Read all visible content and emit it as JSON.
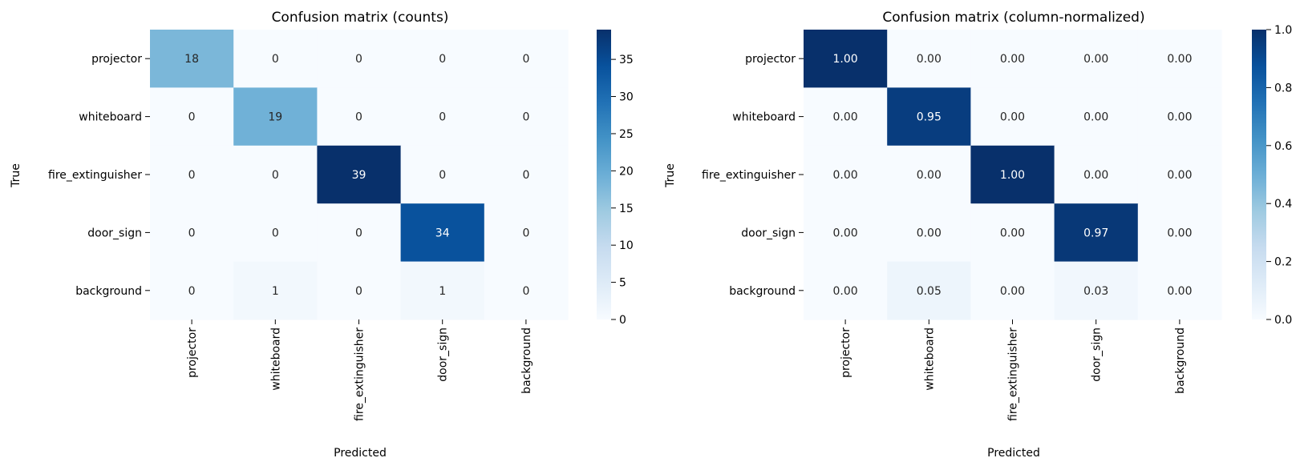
{
  "chart_data": [
    {
      "type": "heatmap",
      "title": "Confusion matrix (counts)",
      "xlabel": "Predicted",
      "ylabel": "True",
      "x_categories": [
        "projector",
        "whiteboard",
        "fire_extinguisher",
        "door_sign",
        "background"
      ],
      "y_categories": [
        "projector",
        "whiteboard",
        "fire_extinguisher",
        "door_sign",
        "background"
      ],
      "values": [
        [
          18,
          0,
          0,
          0,
          0
        ],
        [
          0,
          19,
          0,
          0,
          0
        ],
        [
          0,
          0,
          39,
          0,
          0
        ],
        [
          0,
          0,
          0,
          34,
          0
        ],
        [
          0,
          1,
          0,
          1,
          0
        ]
      ],
      "cell_labels": [
        [
          "18",
          "0",
          "0",
          "0",
          "0"
        ],
        [
          "0",
          "19",
          "0",
          "0",
          "0"
        ],
        [
          "0",
          "0",
          "39",
          "0",
          "0"
        ],
        [
          "0",
          "0",
          "0",
          "34",
          "0"
        ],
        [
          "0",
          "1",
          "0",
          "1",
          "0"
        ]
      ],
      "colorbar": {
        "colormap": "Blues",
        "range": [
          0,
          39
        ],
        "ticks": [
          0,
          5,
          10,
          15,
          20,
          25,
          30,
          35
        ],
        "tick_labels": [
          "0",
          "5",
          "10",
          "15",
          "20",
          "25",
          "30",
          "35"
        ]
      }
    },
    {
      "type": "heatmap",
      "title": "Confusion matrix (column-normalized)",
      "xlabel": "Predicted",
      "ylabel": "True",
      "x_categories": [
        "projector",
        "whiteboard",
        "fire_extinguisher",
        "door_sign",
        "background"
      ],
      "y_categories": [
        "projector",
        "whiteboard",
        "fire_extinguisher",
        "door_sign",
        "background"
      ],
      "values": [
        [
          1.0,
          0.0,
          0.0,
          0.0,
          0.0
        ],
        [
          0.0,
          0.95,
          0.0,
          0.0,
          0.0
        ],
        [
          0.0,
          0.0,
          1.0,
          0.0,
          0.0
        ],
        [
          0.0,
          0.0,
          0.0,
          0.97,
          0.0
        ],
        [
          0.0,
          0.05,
          0.0,
          0.03,
          0.0
        ]
      ],
      "cell_labels": [
        [
          "1.00",
          "0.00",
          "0.00",
          "0.00",
          "0.00"
        ],
        [
          "0.00",
          "0.95",
          "0.00",
          "0.00",
          "0.00"
        ],
        [
          "0.00",
          "0.00",
          "1.00",
          "0.00",
          "0.00"
        ],
        [
          "0.00",
          "0.00",
          "0.00",
          "0.97",
          "0.00"
        ],
        [
          "0.00",
          "0.05",
          "0.00",
          "0.03",
          "0.00"
        ]
      ],
      "colorbar": {
        "colormap": "Blues",
        "range": [
          0,
          1
        ],
        "ticks": [
          0,
          0.2,
          0.4,
          0.6,
          0.8,
          1.0
        ],
        "tick_labels": [
          "0.0",
          "0.2",
          "0.4",
          "0.6",
          "0.8",
          "1.0"
        ]
      }
    }
  ]
}
